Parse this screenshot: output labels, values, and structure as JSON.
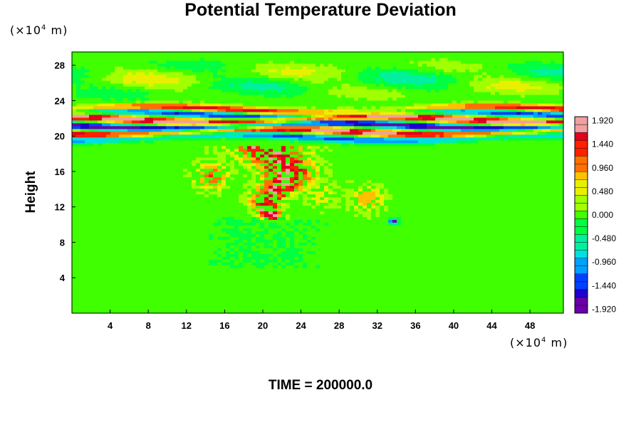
{
  "chart_data": {
    "type": "heatmap",
    "title": "Potential Temperature Deviation",
    "ylabel": "Height",
    "x_unit": "(×10",
    "x_unit_exp": "4",
    "x_unit_tail": " m)",
    "y_unit": "(×10",
    "y_unit_exp": "4",
    "y_unit_tail": " m)",
    "x_ticks": [
      "4",
      "8",
      "12",
      "16",
      "20",
      "24",
      "28",
      "32",
      "36",
      "40",
      "44",
      "48"
    ],
    "x_tick_values": [
      4,
      8,
      12,
      16,
      20,
      24,
      28,
      32,
      36,
      40,
      44,
      48
    ],
    "xlim": [
      0,
      51.5
    ],
    "y_ticks": [
      "4",
      "8",
      "12",
      "16",
      "20",
      "24",
      "28"
    ],
    "y_tick_values": [
      4,
      8,
      12,
      16,
      20,
      24,
      28
    ],
    "ylim": [
      0,
      29.5
    ],
    "colorbar_ticks": [
      "1.920",
      "1.440",
      "0.960",
      "0.480",
      "0.000",
      "-0.480",
      "-0.960",
      "-1.440",
      "-1.920"
    ],
    "colorbar_values": [
      1.92,
      1.44,
      0.96,
      0.48,
      0.0,
      -0.48,
      -0.96,
      -1.44,
      -1.92
    ],
    "colorbar_range": [
      -2.0,
      2.0
    ],
    "colorbar_levels": 25,
    "colormap": [
      "#6a00a8",
      "#2000d0",
      "#0040ff",
      "#00a0ff",
      "#00e0e0",
      "#00f0a0",
      "#00ff40",
      "#40ff00",
      "#a0ff00",
      "#e8f000",
      "#ffc000",
      "#ff7000",
      "#ff2000",
      "#e00020",
      "#f0a0a0"
    ],
    "features": {
      "background_value": 0.0,
      "stratospheric_bands": [
        {
          "y": 23.0,
          "value": 1.6
        },
        {
          "y": 22.6,
          "value": -1.5
        },
        {
          "y": 21.9,
          "value": 1.95
        },
        {
          "y": 21.2,
          "value": -1.95
        },
        {
          "y": 20.5,
          "value": 1.9
        },
        {
          "y": 19.9,
          "value": -1.3
        }
      ],
      "upper_wave_region": {
        "y_from": 23.8,
        "y_to": 29.0,
        "amplitude": 0.6
      },
      "convective_plume": {
        "x_center": 21.5,
        "y_from": 10.5,
        "y_to": 19.0,
        "value": 1.9
      },
      "cold_spot": {
        "x": 33.7,
        "y": 10.4,
        "value": -1.9
      }
    },
    "grid": false,
    "legend": "colorbar-right"
  },
  "footer": {
    "time_label": "TIME = 200000.0"
  }
}
